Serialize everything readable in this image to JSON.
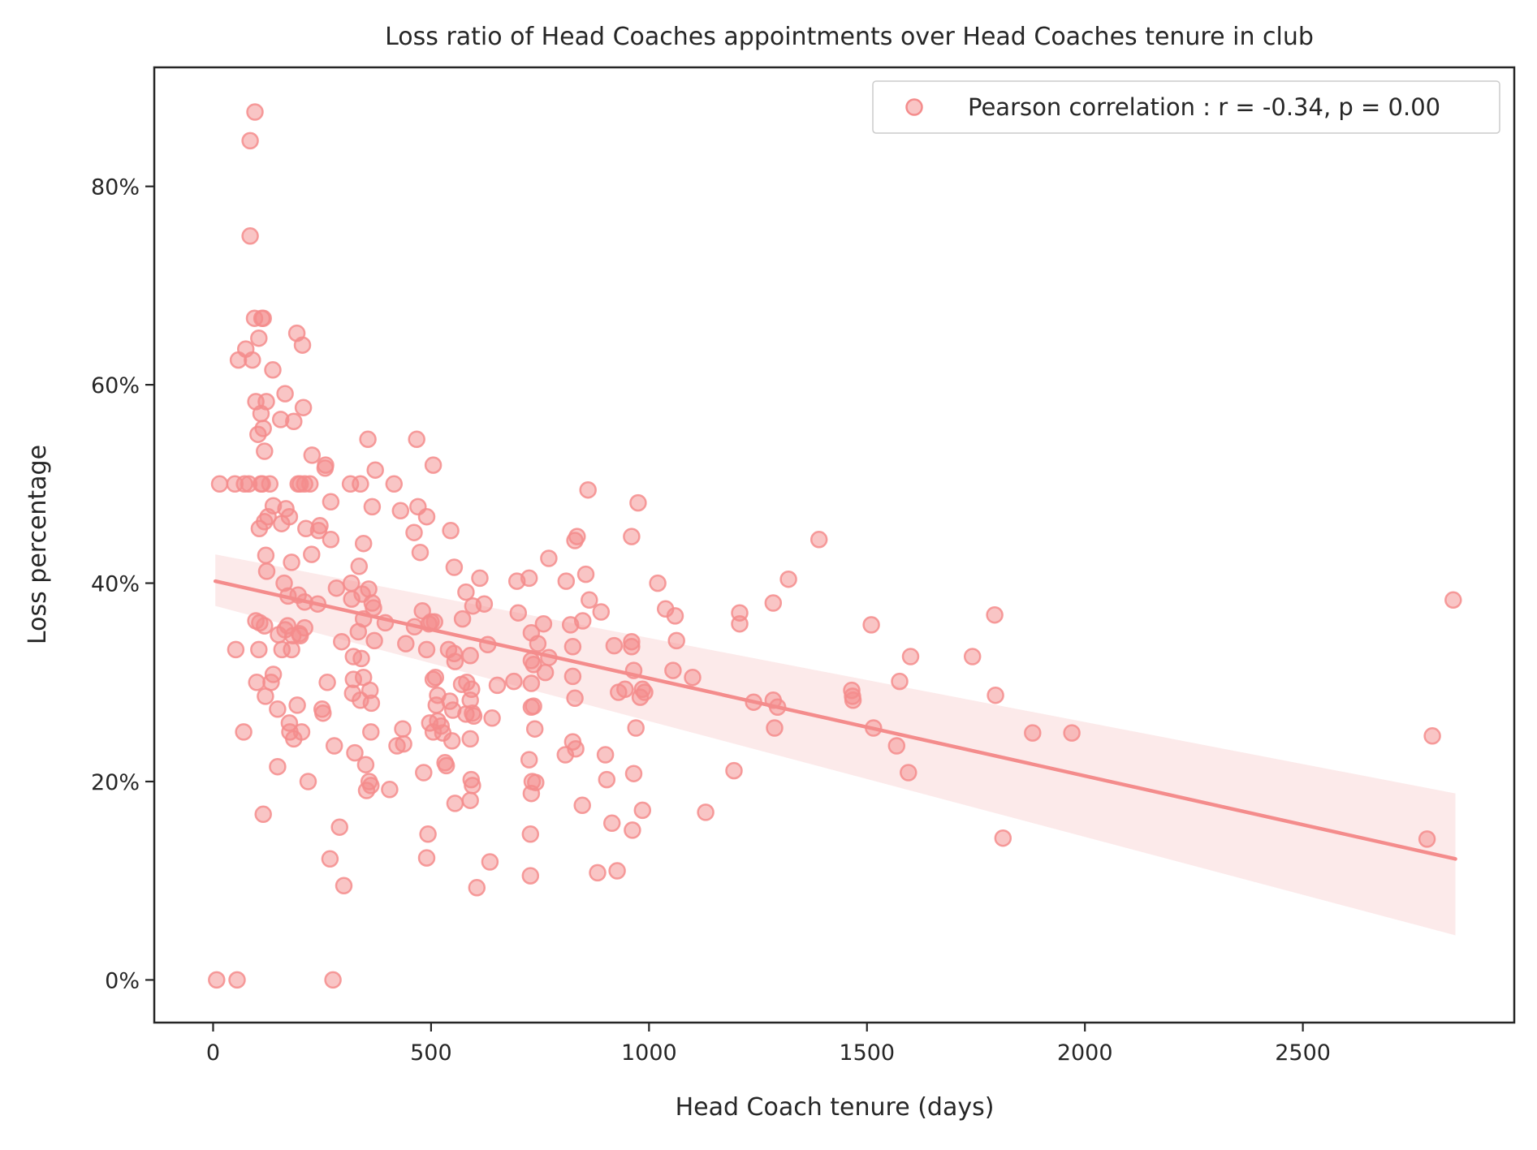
{
  "chart_data": {
    "type": "scatter",
    "title": "Loss ratio of Head Coaches appointments over Head Coaches tenure in club",
    "xlabel": "Head Coach tenure (days)",
    "ylabel": "Loss percentage",
    "xlim": [
      -135,
      2985
    ],
    "ylim": [
      -4.3,
      92
    ],
    "x_ticks": [
      0,
      500,
      1000,
      1500,
      2000,
      2500
    ],
    "x_tick_labels": [
      "0",
      "500",
      "1000",
      "1500",
      "2000",
      "2500"
    ],
    "y_ticks": [
      0,
      20,
      40,
      60,
      80
    ],
    "y_tick_labels": [
      "0%",
      "20%",
      "40%",
      "60%",
      "80%"
    ],
    "grid": false,
    "legend": {
      "position": "top-right",
      "entries": [
        "Pearson correlation : r = -0.34, p = 0.00"
      ]
    },
    "colors": {
      "points": "#f48c8c",
      "line": "#f48c8c",
      "band": "#fbe1e1",
      "axes": "#262626"
    },
    "regression": {
      "start": [
        5,
        40.2
      ],
      "end": [
        2850,
        12.2
      ],
      "ci_upper_start": 42.9,
      "ci_lower_start": 37.7,
      "ci_upper_end": 18.8,
      "ci_lower_end": 4.5
    },
    "points": [
      [
        96,
        87.5
      ],
      [
        85,
        84.6
      ],
      [
        85,
        75
      ],
      [
        95,
        66.7
      ],
      [
        112,
        66.7
      ],
      [
        115,
        66.7
      ],
      [
        105,
        64.7
      ],
      [
        75,
        63.6
      ],
      [
        58,
        62.5
      ],
      [
        90,
        62.5
      ],
      [
        137,
        61.5
      ],
      [
        192,
        65.2
      ],
      [
        205,
        64
      ],
      [
        98,
        58.3
      ],
      [
        122,
        58.3
      ],
      [
        165,
        59.1
      ],
      [
        207,
        57.7
      ],
      [
        110,
        57.1
      ],
      [
        155,
        56.5
      ],
      [
        185,
        56.3
      ],
      [
        115,
        55.6
      ],
      [
        103,
        55
      ],
      [
        355,
        54.5
      ],
      [
        467,
        54.5
      ],
      [
        118,
        53.3
      ],
      [
        227,
        52.9
      ],
      [
        258,
        51.9
      ],
      [
        257,
        51.6
      ],
      [
        372,
        51.4
      ],
      [
        505,
        51.9
      ],
      [
        15,
        50
      ],
      [
        50,
        50
      ],
      [
        72,
        50
      ],
      [
        82,
        50
      ],
      [
        110,
        50
      ],
      [
        113,
        50
      ],
      [
        130,
        50
      ],
      [
        195,
        50
      ],
      [
        200,
        50
      ],
      [
        210,
        50
      ],
      [
        222,
        50
      ],
      [
        315,
        50
      ],
      [
        338,
        50
      ],
      [
        415,
        50
      ],
      [
        860,
        49.4
      ],
      [
        138,
        47.8
      ],
      [
        167,
        47.5
      ],
      [
        175,
        46.7
      ],
      [
        126,
        46.7
      ],
      [
        118,
        46.2
      ],
      [
        157,
        46
      ],
      [
        106,
        45.5
      ],
      [
        213,
        45.5
      ],
      [
        245,
        45.8
      ],
      [
        242,
        45.3
      ],
      [
        270,
        48.2
      ],
      [
        365,
        47.7
      ],
      [
        430,
        47.3
      ],
      [
        470,
        47.7
      ],
      [
        490,
        46.7
      ],
      [
        461,
        45.1
      ],
      [
        545,
        45.3
      ],
      [
        975,
        48.1
      ],
      [
        960,
        44.7
      ],
      [
        830,
        44.3
      ],
      [
        835,
        44.7
      ],
      [
        1390,
        44.4
      ],
      [
        270,
        44.4
      ],
      [
        345,
        44
      ],
      [
        121,
        42.8
      ],
      [
        226,
        42.9
      ],
      [
        180,
        42.1
      ],
      [
        475,
        43.1
      ],
      [
        553,
        41.6
      ],
      [
        770,
        42.5
      ],
      [
        123,
        41.2
      ],
      [
        335,
        41.7
      ],
      [
        163,
        40
      ],
      [
        317,
        40
      ],
      [
        612,
        40.5
      ],
      [
        697,
        40.2
      ],
      [
        725,
        40.5
      ],
      [
        810,
        40.2
      ],
      [
        855,
        40.9
      ],
      [
        1020,
        40
      ],
      [
        1320,
        40.4
      ],
      [
        172,
        38.7
      ],
      [
        195,
        38.8
      ],
      [
        210,
        38.1
      ],
      [
        240,
        37.9
      ],
      [
        283,
        39.5
      ],
      [
        318,
        38.4
      ],
      [
        357,
        39.4
      ],
      [
        342,
        38.9
      ],
      [
        365,
        38
      ],
      [
        368,
        37.5
      ],
      [
        395,
        36
      ],
      [
        480,
        37.2
      ],
      [
        500,
        36.1
      ],
      [
        495,
        35.9
      ],
      [
        508,
        36.1
      ],
      [
        572,
        36.4
      ],
      [
        580,
        39.1
      ],
      [
        596,
        37.7
      ],
      [
        622,
        37.9
      ],
      [
        700,
        37
      ],
      [
        745,
        33.9
      ],
      [
        758,
        35.9
      ],
      [
        730,
        35
      ],
      [
        820,
        35.8
      ],
      [
        848,
        36.2
      ],
      [
        863,
        38.3
      ],
      [
        890,
        37.1
      ],
      [
        1038,
        37.4
      ],
      [
        1060,
        36.7
      ],
      [
        1208,
        37
      ],
      [
        1208,
        35.9
      ],
      [
        1285,
        38
      ],
      [
        1510,
        35.8
      ],
      [
        1793,
        36.8
      ],
      [
        2845,
        38.3
      ],
      [
        98,
        36.2
      ],
      [
        107,
        36
      ],
      [
        118,
        35.7
      ],
      [
        165,
        35.3
      ],
      [
        171,
        35.7
      ],
      [
        183,
        34.7
      ],
      [
        198,
        34.9
      ],
      [
        200,
        34.7
      ],
      [
        210,
        35.5
      ],
      [
        150,
        34.8
      ],
      [
        158,
        33.3
      ],
      [
        105,
        33.3
      ],
      [
        52,
        33.3
      ],
      [
        180,
        33.3
      ],
      [
        295,
        34.1
      ],
      [
        333,
        35.1
      ],
      [
        345,
        36.4
      ],
      [
        370,
        34.2
      ],
      [
        442,
        33.9
      ],
      [
        462,
        35.6
      ],
      [
        490,
        33.3
      ],
      [
        540,
        33.3
      ],
      [
        553,
        32.9
      ],
      [
        555,
        32.1
      ],
      [
        590,
        32.7
      ],
      [
        630,
        33.8
      ],
      [
        730,
        32.2
      ],
      [
        735,
        31.8
      ],
      [
        762,
        31
      ],
      [
        770,
        32.5
      ],
      [
        825,
        33.6
      ],
      [
        920,
        33.7
      ],
      [
        960,
        34.1
      ],
      [
        960,
        33.6
      ],
      [
        1063,
        34.2
      ],
      [
        1600,
        32.6
      ],
      [
        1742,
        32.6
      ],
      [
        138,
        30.8
      ],
      [
        133,
        30
      ],
      [
        100,
        30
      ],
      [
        120,
        28.6
      ],
      [
        262,
        30
      ],
      [
        322,
        32.6
      ],
      [
        340,
        32.4
      ],
      [
        345,
        30.5
      ],
      [
        322,
        30.3
      ],
      [
        360,
        29.2
      ],
      [
        320,
        28.9
      ],
      [
        338,
        28.2
      ],
      [
        363,
        27.9
      ],
      [
        505,
        30.3
      ],
      [
        510,
        30.5
      ],
      [
        515,
        28.7
      ],
      [
        512,
        27.7
      ],
      [
        570,
        29.8
      ],
      [
        582,
        30
      ],
      [
        593,
        29.3
      ],
      [
        590,
        28.2
      ],
      [
        652,
        29.7
      ],
      [
        690,
        30.1
      ],
      [
        730,
        29.9
      ],
      [
        825,
        30.6
      ],
      [
        830,
        28.4
      ],
      [
        930,
        29
      ],
      [
        945,
        29.3
      ],
      [
        965,
        31.2
      ],
      [
        985,
        29.3
      ],
      [
        980,
        28.5
      ],
      [
        990,
        29
      ],
      [
        1055,
        31.2
      ],
      [
        1100,
        30.5
      ],
      [
        1240,
        28
      ],
      [
        1285,
        28.2
      ],
      [
        1295,
        27.5
      ],
      [
        1465,
        29.2
      ],
      [
        1467,
        28.6
      ],
      [
        1468,
        28.2
      ],
      [
        1575,
        30.1
      ],
      [
        1795,
        28.7
      ],
      [
        148,
        27.3
      ],
      [
        193,
        27.7
      ],
      [
        250,
        27.3
      ],
      [
        252,
        26.9
      ],
      [
        543,
        28.1
      ],
      [
        550,
        27.2
      ],
      [
        580,
        26.8
      ],
      [
        595,
        26.9
      ],
      [
        598,
        26.6
      ],
      [
        640,
        26.4
      ],
      [
        730,
        27.5
      ],
      [
        735,
        27.6
      ],
      [
        970,
        25.4
      ],
      [
        1515,
        25.4
      ],
      [
        1288,
        25.4
      ],
      [
        70,
        25
      ],
      [
        175,
        25.9
      ],
      [
        176,
        25
      ],
      [
        185,
        24.3
      ],
      [
        203,
        25
      ],
      [
        362,
        25
      ],
      [
        435,
        25.3
      ],
      [
        497,
        25.9
      ],
      [
        505,
        25
      ],
      [
        515,
        26.1
      ],
      [
        523,
        25.6
      ],
      [
        527,
        24.9
      ],
      [
        548,
        24.1
      ],
      [
        590,
        24.3
      ],
      [
        738,
        25.3
      ],
      [
        825,
        24
      ],
      [
        832,
        23.3
      ],
      [
        1568,
        23.6
      ],
      [
        1880,
        24.9
      ],
      [
        1970,
        24.9
      ],
      [
        2797,
        24.6
      ],
      [
        278,
        23.6
      ],
      [
        325,
        22.9
      ],
      [
        422,
        23.6
      ],
      [
        437,
        23.8
      ],
      [
        148,
        21.5
      ],
      [
        218,
        20
      ],
      [
        350,
        21.7
      ],
      [
        358,
        20
      ],
      [
        352,
        19.1
      ],
      [
        362,
        19.6
      ],
      [
        405,
        19.2
      ],
      [
        483,
        20.9
      ],
      [
        532,
        21.9
      ],
      [
        535,
        21.6
      ],
      [
        592,
        20.2
      ],
      [
        595,
        19.6
      ],
      [
        725,
        22.2
      ],
      [
        732,
        20
      ],
      [
        740,
        19.9
      ],
      [
        808,
        22.7
      ],
      [
        900,
        22.7
      ],
      [
        903,
        20.2
      ],
      [
        965,
        20.8
      ],
      [
        1195,
        21.1
      ],
      [
        1595,
        20.9
      ],
      [
        115,
        16.7
      ],
      [
        555,
        17.8
      ],
      [
        590,
        18.1
      ],
      [
        730,
        18.8
      ],
      [
        847,
        17.6
      ],
      [
        915,
        15.8
      ],
      [
        962,
        15.1
      ],
      [
        985,
        17.1
      ],
      [
        1130,
        16.9
      ],
      [
        290,
        15.4
      ],
      [
        268,
        12.2
      ],
      [
        493,
        14.7
      ],
      [
        490,
        12.3
      ],
      [
        728,
        14.7
      ],
      [
        1812,
        14.3
      ],
      [
        2785,
        14.2
      ],
      [
        300,
        9.5
      ],
      [
        605,
        9.3
      ],
      [
        635,
        11.9
      ],
      [
        728,
        10.5
      ],
      [
        882,
        10.8
      ],
      [
        927,
        11
      ],
      [
        8,
        0
      ],
      [
        55,
        0
      ],
      [
        275,
        0
      ]
    ]
  }
}
